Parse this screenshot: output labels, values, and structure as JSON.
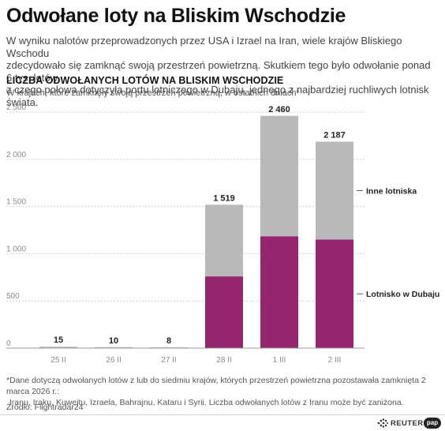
{
  "header": {
    "title": "Odwołane loty na Bliskim Wschodzie",
    "lead": [
      "W wyniku nalotów przeprowadzonych przez USA i Izrael na Iran, wiele krajów Bliskiego Wschodu",
      "zdecydowało się zamknąć swoją przestrzeń powietrzną. Skutkiem tego było odwołanie ponad 6 tys. lotów,",
      "z czego połowa dotyczyła portu lotniczego w Dubaju, jednego z najbardziej ruchliwych lotnisk świata."
    ]
  },
  "chart_data": {
    "type": "bar",
    "stacked": true,
    "title": "LICZBA ODWOŁANYCH LOTÓW NA BLISKIM WSCHODZIE",
    "subtitle": "W krajach, które zamknęły swoją przestrzeń powietrzną, w ostatnich dniach*",
    "categories": [
      "25 II",
      "26 II",
      "27 II",
      "28 II",
      "1 III",
      "2 III"
    ],
    "totals": [
      15,
      10,
      8,
      1519,
      2460,
      2187
    ],
    "total_labels": [
      "15",
      "10",
      "8",
      "1 519",
      "2 460",
      "2 187"
    ],
    "series": [
      {
        "name": "Lotnisko w Dubaju",
        "color": "#93266f",
        "values": [
          0,
          0,
          0,
          760,
          1185,
          1150
        ]
      },
      {
        "name": "Inne lotniska",
        "color": "#b9b9b9",
        "values": [
          15,
          10,
          8,
          759,
          1275,
          1037
        ]
      }
    ],
    "ylim": [
      0,
      2500
    ],
    "yticks": [
      0,
      500,
      1000,
      1500,
      2000,
      2500
    ],
    "ytick_labels": [
      "0",
      "500",
      "1 000",
      "1 500",
      "2 000",
      "2 500"
    ],
    "grid": true,
    "legend": "right, inline"
  },
  "footnote": [
    "*Dane dotyczą odwołanych lotów z lub do siedmiu krajów, których przestrzeń powietrzna pozostawała zamknięta 2 marca 2026 r.:",
    "Iranu, Iraku, Kuwejtu, Izraela, Bahrajnu, Kataru i Syrii. Liczba odwołanych lotów z Iranu może być zaniżona."
  ],
  "source": "Źródło: Flightradar24",
  "logos": {
    "reuters": "REUTERS",
    "pap": "pap"
  }
}
